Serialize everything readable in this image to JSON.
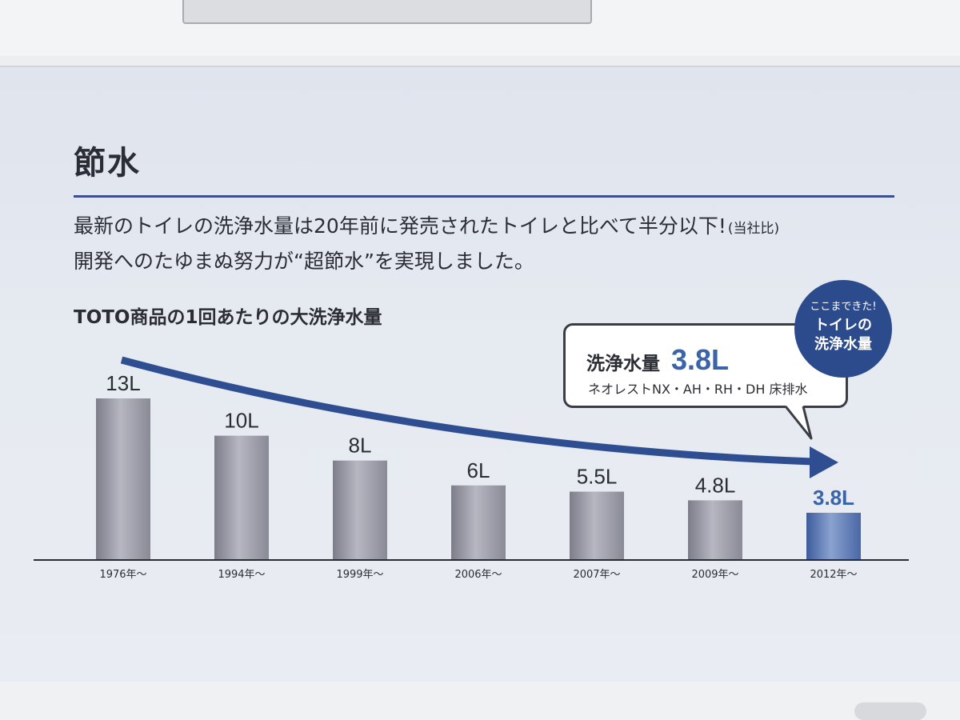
{
  "header": {
    "title": "節水",
    "lead_line1": "最新のトイレの洗浄水量は20年前に発売されたトイレと比べて半分以下!",
    "lead_note": "(当社比)",
    "lead_line2": "開発へのたゆまぬ努力が“超節水”を実現しました。"
  },
  "chart_data": {
    "type": "bar",
    "title": "TOTO商品の1回あたりの大洗浄水量",
    "categories": [
      "1976年～",
      "1994年～",
      "1999年～",
      "2006年～",
      "2007年～",
      "2009年～",
      "2012年～"
    ],
    "values": [
      13,
      10,
      8,
      6,
      5.5,
      4.8,
      3.8
    ],
    "value_labels": [
      "13L",
      "10L",
      "8L",
      "6L",
      "5.5L",
      "4.8L",
      "3.8L"
    ],
    "unit": "L",
    "highlight_index": 6,
    "ylim": [
      0,
      13
    ],
    "grid": false,
    "colors": {
      "bar": "#9c9ca8",
      "highlight": "#4e6fae",
      "arrow": "#2f4e92"
    }
  },
  "callout": {
    "label": "洗浄水量",
    "value": "3.8L",
    "models": "ネオレストNX・AH・RH・DH 床排水"
  },
  "badge": {
    "small": "ここまできた!",
    "line1": "トイレの",
    "line2": "洗浄水量"
  }
}
